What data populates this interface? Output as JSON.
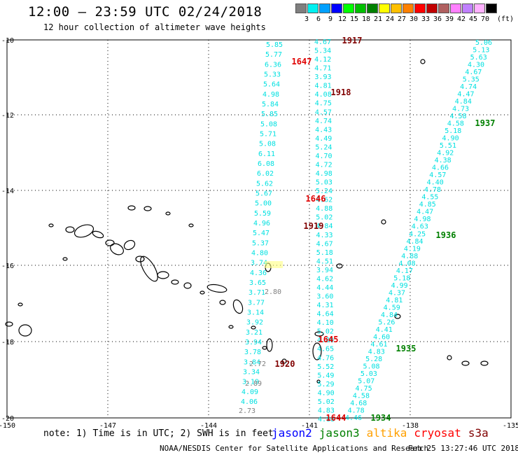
{
  "title": "12:00 – 23:59 UTC 02/24/2018",
  "subtitle": "12 hour collection of altimeter wave heights",
  "scale": {
    "unit": "(ft)",
    "items": [
      {
        "label": "3",
        "color": "#7f7f7f"
      },
      {
        "label": "6",
        "color": "#00f0f0"
      },
      {
        "label": "9",
        "color": "#00a0ff"
      },
      {
        "label": "12",
        "color": "#0000ff"
      },
      {
        "label": "15",
        "color": "#00ff00"
      },
      {
        "label": "18",
        "color": "#00c000"
      },
      {
        "label": "21",
        "color": "#008000"
      },
      {
        "label": "24",
        "color": "#ffff00"
      },
      {
        "label": "27",
        "color": "#ffc000"
      },
      {
        "label": "30",
        "color": "#ff8000"
      },
      {
        "label": "33",
        "color": "#ff0000"
      },
      {
        "label": "36",
        "color": "#c00000"
      },
      {
        "label": "39",
        "color": "#b06060"
      },
      {
        "label": "42",
        "color": "#ff80ff"
      },
      {
        "label": "45",
        "color": "#c080ff"
      },
      {
        "label": "70",
        "color": "#ffb0ff"
      },
      {
        "label": "",
        "color": "#000000"
      }
    ]
  },
  "axes": {
    "lon_labels": [
      "-150",
      "-147",
      "-144",
      "-141",
      "-138",
      "-135"
    ],
    "lat_labels": [
      "-10",
      "-12",
      "-14",
      "-16",
      "-18",
      "-20"
    ]
  },
  "tracks": [
    {
      "satellite": "jason2",
      "color": "#00e0e0",
      "values": [
        "5.85",
        "5.77",
        "6.36",
        "5.33",
        "5.64",
        "4.98",
        "5.84",
        "5.85",
        "5.08",
        "5.71",
        "5.08",
        "6.11",
        "6.08",
        "6.02",
        "5.62",
        "5.67",
        "5.00",
        "5.59",
        "4.96",
        "5.47",
        "5.37",
        "4.80",
        "3.74",
        "4.36",
        "3.65",
        "3.71",
        "3.77",
        "3.14",
        "3.92",
        "3.21",
        "3.94",
        "3.78",
        "3.84",
        "3.34",
        "3.19",
        "4.09",
        "4.06"
      ]
    },
    {
      "satellite": "jason2-grey",
      "color": "#808080",
      "values": [
        "2.80",
        "2.72",
        "2.89",
        "2.73"
      ]
    },
    {
      "satellite": "jason2-b",
      "color": "#00e0e0",
      "values": [
        "4.67",
        "5.34",
        "4.12",
        "4.71",
        "3.93",
        "4.81",
        "4.08",
        "4.75",
        "4.57",
        "4.74",
        "4.43",
        "4.49",
        "5.24",
        "4.70",
        "4.72",
        "4.98",
        "5.03",
        "5.24",
        "4.62",
        "4.88",
        "5.02",
        "4.84",
        "4.33",
        "4.67",
        "5.18",
        "4.51",
        "3.94",
        "4.62",
        "4.44",
        "3.60",
        "4.31",
        "4.64",
        "4.10",
        "5.02",
        "4.80",
        "4.65",
        "4.76",
        "5.52",
        "5.49",
        "5.29",
        "4.90",
        "5.02",
        "4.83",
        "4.88"
      ]
    },
    {
      "satellite": "jason3",
      "color": "#00e0e0",
      "values": [
        "5.06",
        "5.13",
        "5.63",
        "4.30",
        "4.67",
        "5.35",
        "4.74",
        "4.47",
        "4.84",
        "4.73",
        "4.58",
        "4.58",
        "5.18",
        "4.90",
        "5.51",
        "4.92",
        "4.38",
        "4.66",
        "4.57",
        "4.40",
        "4.78",
        "4.55",
        "4.85",
        "4.47",
        "4.98",
        "4.63",
        "4.25",
        "4.84",
        "4.19",
        "4.88",
        "4.08",
        "4.17",
        "5.18",
        "4.99",
        "4.37",
        "4.81",
        "4.59",
        "4.84",
        "5.26",
        "4.41",
        "4.60",
        "4.61",
        "4.83",
        "5.28",
        "5.08",
        "5.03",
        "5.07",
        "4.75",
        "4.58",
        "4.68",
        "4.78",
        "4.46"
      ]
    }
  ],
  "pass_times": [
    {
      "label": "1917",
      "color": "#800000"
    },
    {
      "label": "1647",
      "color": "#e00000"
    },
    {
      "label": "1918",
      "color": "#800000"
    },
    {
      "label": "1937",
      "color": "#008000"
    },
    {
      "label": "1646",
      "color": "#e00000"
    },
    {
      "label": "1919",
      "color": "#800000"
    },
    {
      "label": "1936",
      "color": "#008000"
    },
    {
      "label": "1645",
      "color": "#e00000"
    },
    {
      "label": "1935",
      "color": "#008000"
    },
    {
      "label": "1920",
      "color": "#800000"
    },
    {
      "label": "1644",
      "color": "#e00000"
    },
    {
      "label": "1934",
      "color": "#008000"
    }
  ],
  "note": "note: 1) Time is in UTC; 2) SWH is in feet",
  "legend": [
    {
      "label": "jason2",
      "color": "#0000ff"
    },
    {
      "label": "jason3",
      "color": "#008000"
    },
    {
      "label": "altika",
      "color": "#ffa000"
    },
    {
      "label": "cryosat",
      "color": "#ff0000"
    },
    {
      "label": "s3a",
      "color": "#800000"
    }
  ],
  "credit": "NOAA/NESDIS Center for Satellite Applications and Research",
  "timestamp": "Feb 25 13:27:46 UTC 2018"
}
